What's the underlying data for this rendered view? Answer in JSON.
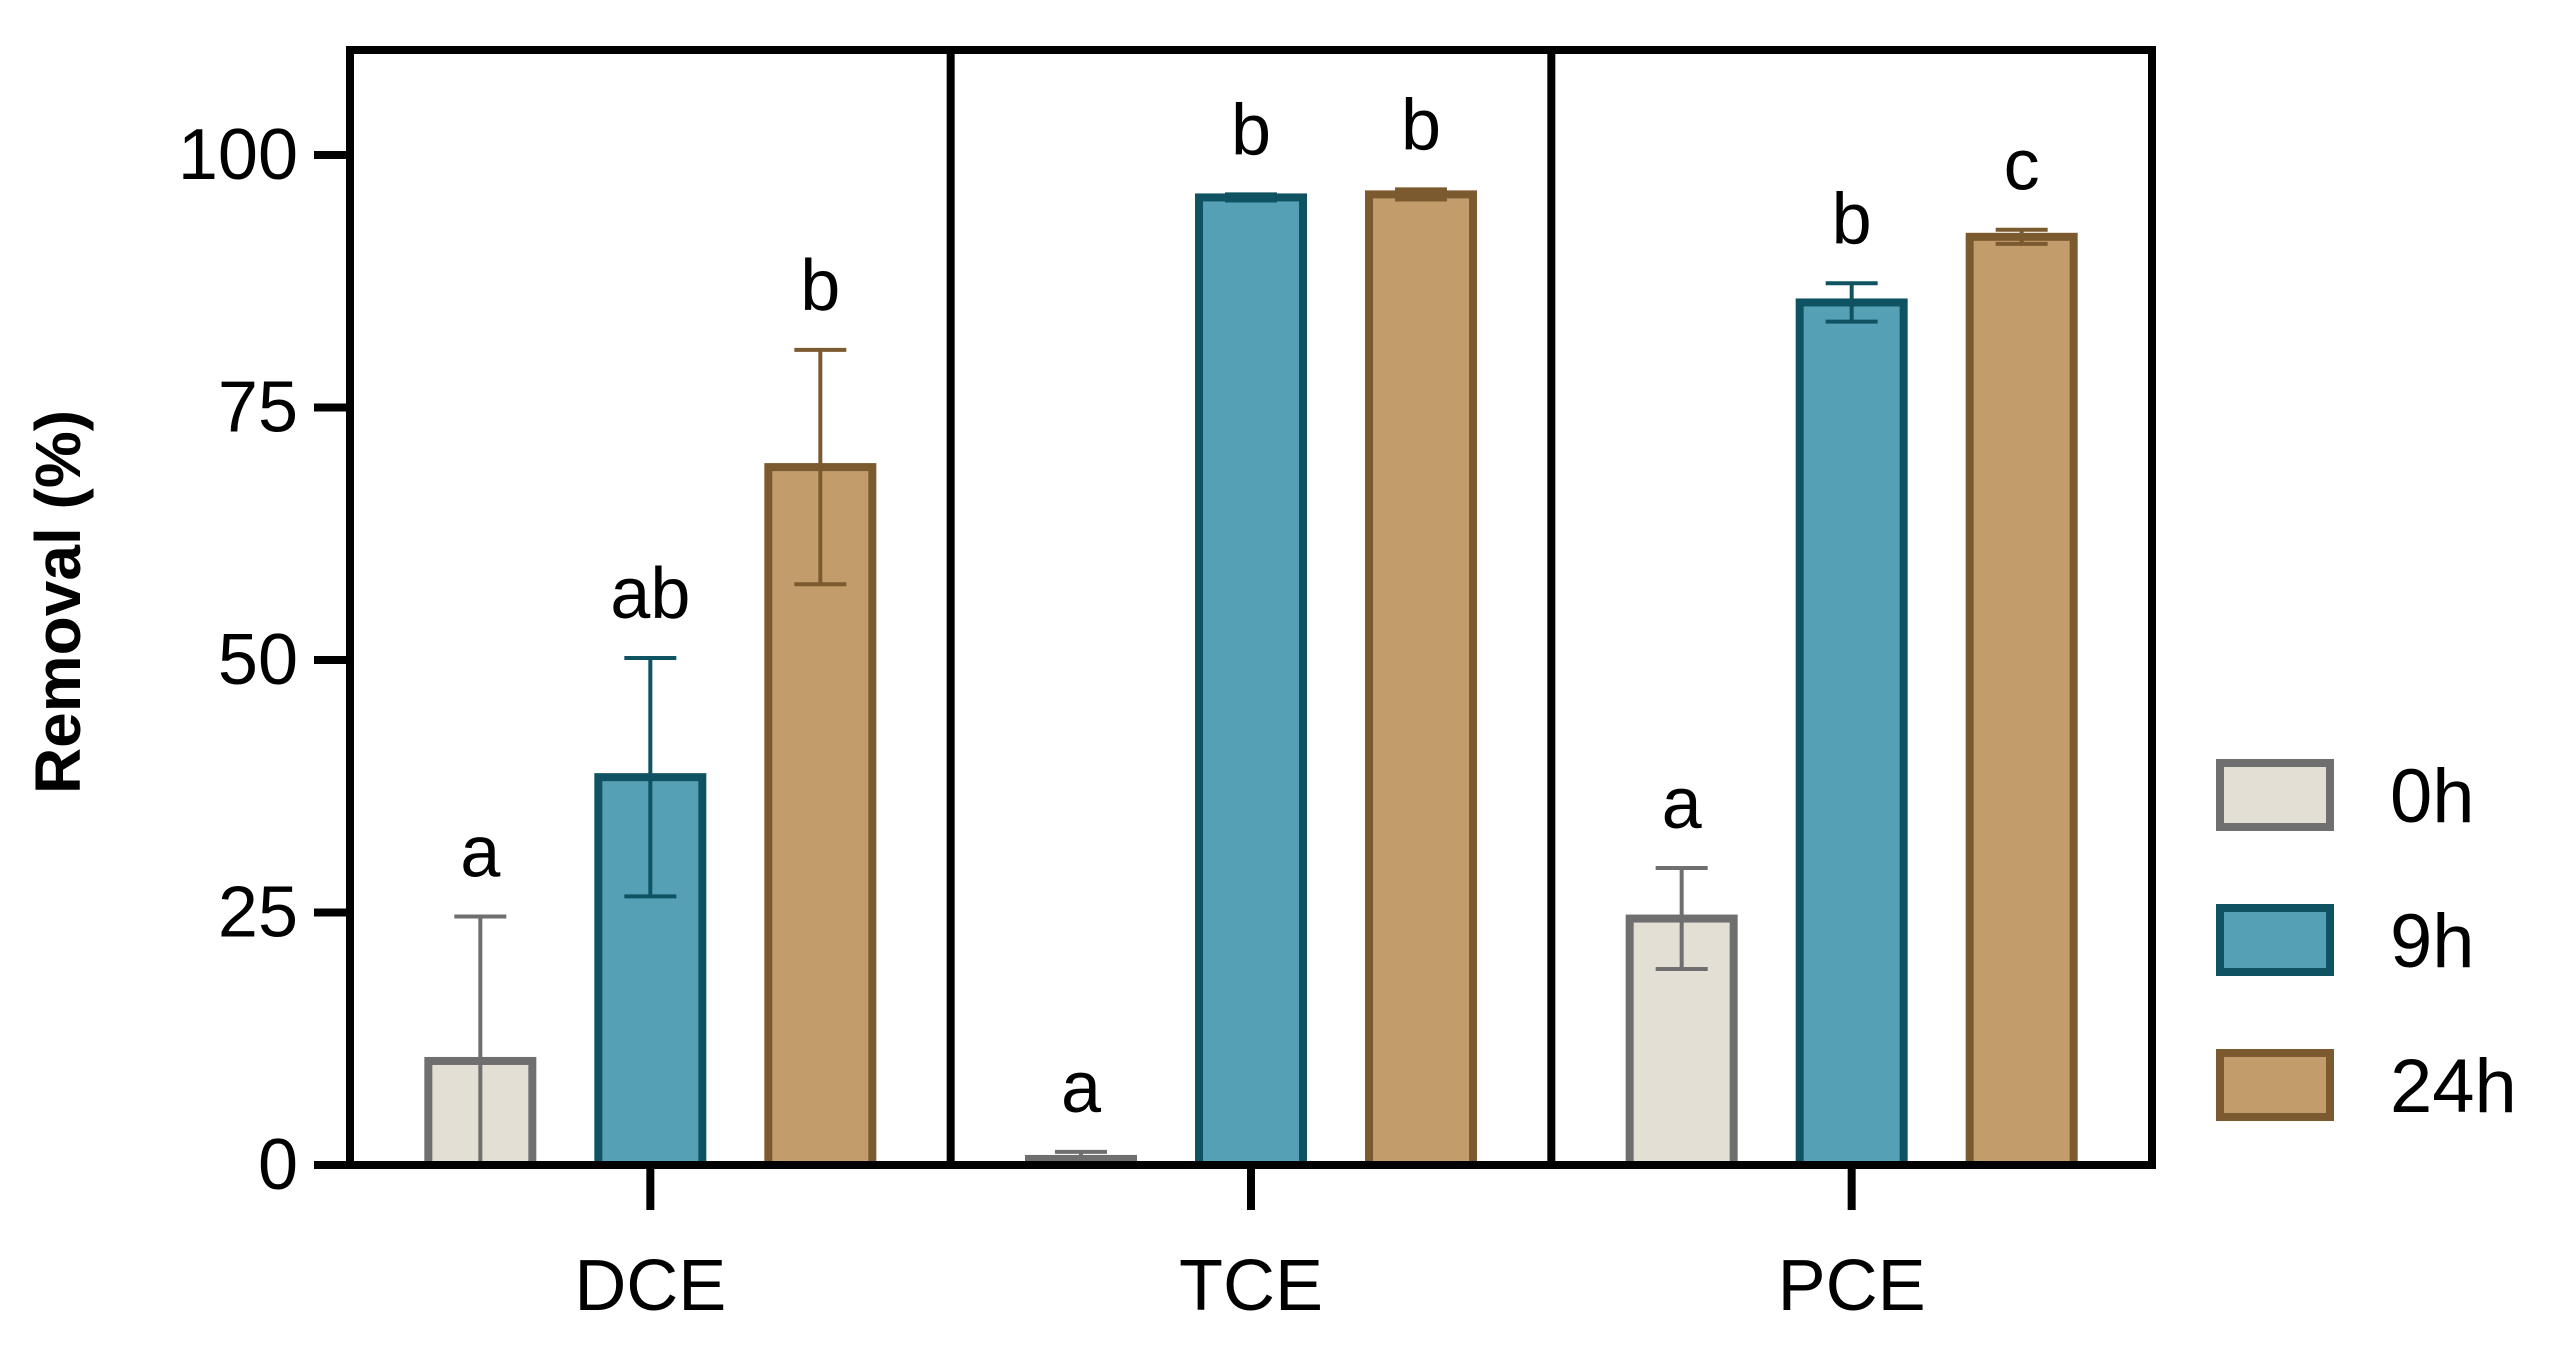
{
  "chart_data": {
    "type": "bar",
    "title": "",
    "xlabel": "",
    "ylabel": "Removal (%)",
    "ylim": [
      0,
      110
    ],
    "yticks": [
      0,
      25,
      50,
      75,
      100
    ],
    "ytick_labels": [
      "0",
      "25",
      "50",
      "75",
      "100"
    ],
    "grid": false,
    "legend_position": "right",
    "categories": [
      "DCE",
      "TCE",
      "PCE"
    ],
    "series": [
      {
        "name": "0h",
        "fill": "#e4dfd4",
        "stroke": "#6f6f6f",
        "values": [
          10.3,
          0.6,
          24.4
        ],
        "errors": [
          14.3,
          0.7,
          5.0
        ],
        "letters": [
          "a",
          "a",
          "a"
        ]
      },
      {
        "name": "9h",
        "fill": "#56a0b5",
        "stroke": "#0f5362",
        "values": [
          38.4,
          95.8,
          85.4
        ],
        "errors": [
          11.8,
          0.3,
          1.9
        ],
        "letters": [
          "ab",
          "b",
          "b"
        ]
      },
      {
        "name": "24h",
        "fill": "#c39c6c",
        "stroke": "#7b5a30",
        "values": [
          69.1,
          96.1,
          91.9
        ],
        "errors": [
          11.6,
          0.5,
          0.7
        ],
        "letters": [
          "b",
          "b",
          "c"
        ]
      }
    ]
  }
}
